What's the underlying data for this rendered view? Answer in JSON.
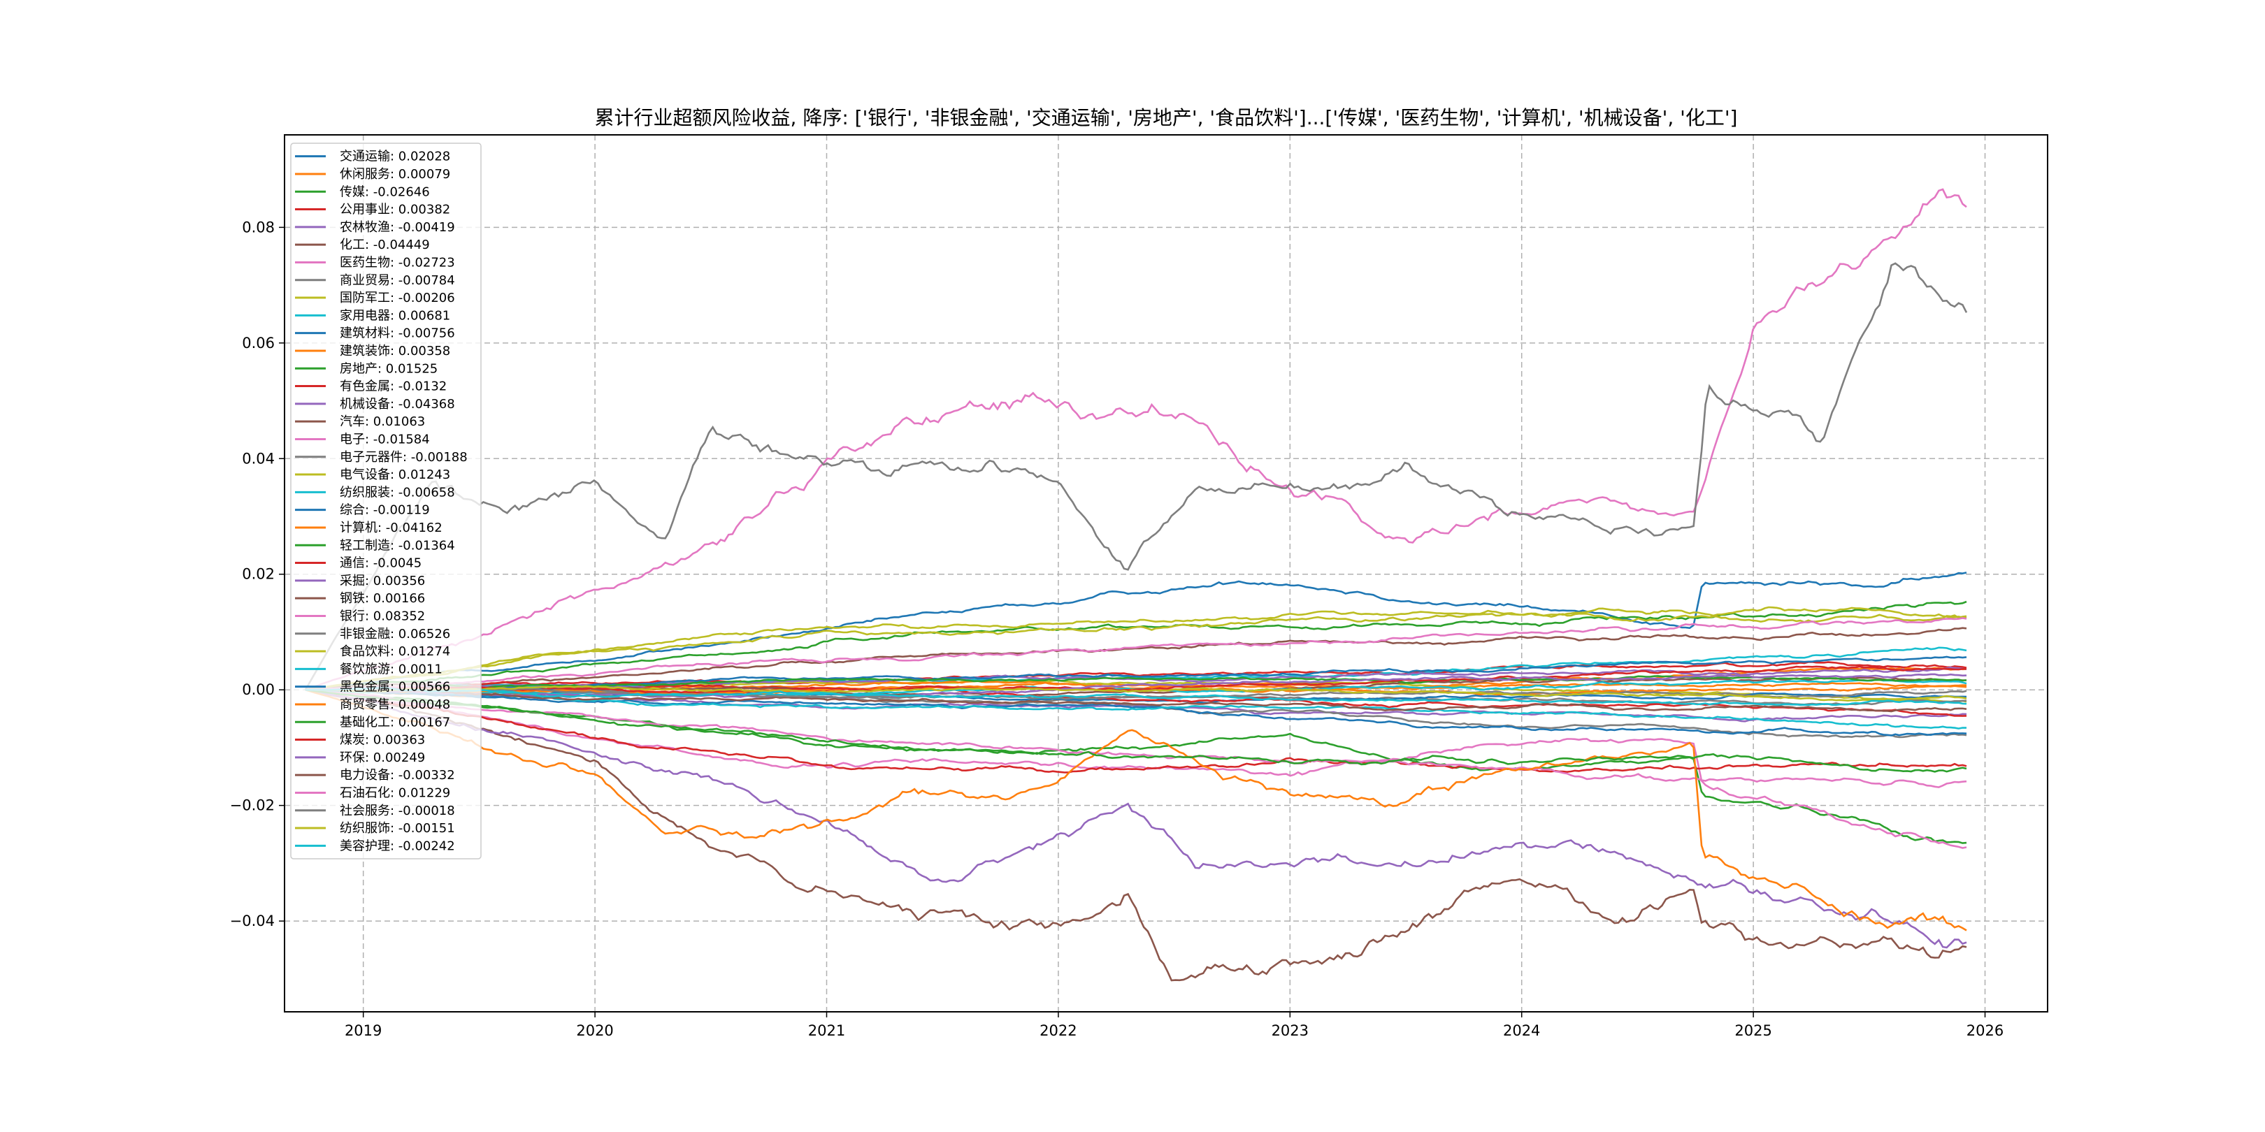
{
  "chart_data": {
    "type": "line",
    "title": "累计行业超额风险收益,  降序: ['银行', '非银金融', '交通运输', '房地产', '食品饮料']...['传媒', '医药生物', '计算机', '机械设备', '化工']",
    "xlabel": "",
    "ylabel": "",
    "xlim": [
      2018.66,
      2026.27
    ],
    "ylim": [
      -0.0557,
      0.096
    ],
    "x_ticks": [
      "2019",
      "2020",
      "2021",
      "2022",
      "2023",
      "2024",
      "2025",
      "2026"
    ],
    "y_ticks": [
      "−0.04",
      "−0.02",
      "0.00",
      "0.02",
      "0.04",
      "0.06",
      "0.08"
    ],
    "grid": true,
    "legend_position": "upper-left",
    "series": [
      {
        "name": "交通运输",
        "final": 0.02028,
        "label": "交通运输: 0.02028",
        "color": "#1f77b4",
        "anchors": [
          [
            2020,
            0.005
          ],
          [
            2021,
            0.01
          ],
          [
            2022,
            0.013
          ],
          [
            2023,
            0.017
          ],
          [
            2024,
            0.015
          ],
          [
            2024.74,
            0.012
          ],
          [
            2024.78,
            0.02
          ],
          [
            2025.5,
            0.019
          ]
        ]
      },
      {
        "name": "休闲服务",
        "final": 0.00079,
        "label": "休闲服务: 0.00079",
        "color": "#ff7f0e"
      },
      {
        "name": "传媒",
        "final": -0.02646,
        "label": "传媒: -0.02646",
        "color": "#2ca02c",
        "anchors": [
          [
            2020,
            -0.005
          ],
          [
            2021,
            -0.01
          ],
          [
            2022,
            -0.012
          ],
          [
            2023,
            -0.008
          ],
          [
            2023.5,
            -0.013
          ],
          [
            2024,
            -0.015
          ],
          [
            2024.74,
            -0.013
          ],
          [
            2024.78,
            -0.02
          ],
          [
            2025.3,
            -0.022
          ]
        ]
      },
      {
        "name": "公用事业",
        "final": 0.00382,
        "label": "公用事业: 0.00382",
        "color": "#d62728"
      },
      {
        "name": "农林牧渔",
        "final": -0.00419,
        "label": "农林牧渔: -0.00419",
        "color": "#9467bd"
      },
      {
        "name": "化工",
        "final": -0.04449,
        "label": "化工: -0.04449",
        "color": "#8c564b",
        "anchors": [
          [
            2020,
            -0.01
          ],
          [
            2020.5,
            -0.025
          ],
          [
            2021,
            -0.035
          ],
          [
            2021.5,
            -0.042
          ],
          [
            2022,
            -0.045
          ],
          [
            2022.3,
            -0.035
          ],
          [
            2022.5,
            -0.046
          ],
          [
            2023,
            -0.045
          ],
          [
            2023.5,
            -0.04
          ],
          [
            2024,
            -0.035
          ],
          [
            2024.5,
            -0.04
          ],
          [
            2024.74,
            -0.034
          ],
          [
            2024.78,
            -0.04
          ],
          [
            2025.5,
            -0.042
          ]
        ]
      },
      {
        "name": "医药生物",
        "final": -0.02723,
        "label": "医药生物: -0.02723",
        "color": "#e377c2",
        "anchors": [
          [
            2020,
            -0.01
          ],
          [
            2021,
            -0.015
          ],
          [
            2022,
            -0.015
          ],
          [
            2023,
            -0.018
          ],
          [
            2024,
            -0.012
          ],
          [
            2024.74,
            -0.012
          ],
          [
            2024.78,
            -0.02
          ],
          [
            2025.5,
            -0.025
          ]
        ]
      },
      {
        "name": "商业贸易",
        "final": -0.00784,
        "label": "商业贸易: -0.00784",
        "color": "#7f7f7f"
      },
      {
        "name": "国防军工",
        "final": -0.00206,
        "label": "国防军工: -0.00206",
        "color": "#bcbd22"
      },
      {
        "name": "家用电器",
        "final": 0.00681,
        "label": "家用电器: 0.00681",
        "color": "#17becf"
      },
      {
        "name": "建筑材料",
        "final": -0.00756,
        "label": "建筑材料: -0.00756",
        "color": "#1f77b4"
      },
      {
        "name": "建筑装饰",
        "final": 0.00358,
        "label": "建筑装饰: 0.00358",
        "color": "#ff7f0e"
      },
      {
        "name": "房地产",
        "final": 0.01525,
        "label": "房地产: 0.01525",
        "color": "#2ca02c",
        "anchors": [
          [
            2020,
            0.004
          ],
          [
            2021,
            0.008
          ],
          [
            2022,
            0.01
          ],
          [
            2023,
            0.011
          ],
          [
            2024,
            0.012
          ],
          [
            2025,
            0.013
          ]
        ]
      },
      {
        "name": "有色金属",
        "final": -0.0132,
        "label": "有色金属: -0.0132",
        "color": "#d62728",
        "anchors": [
          [
            2020,
            -0.008
          ],
          [
            2021,
            -0.012
          ],
          [
            2022,
            -0.013
          ],
          [
            2023,
            -0.012
          ],
          [
            2024,
            -0.013
          ],
          [
            2025,
            -0.014
          ]
        ]
      },
      {
        "name": "机械设备",
        "final": -0.04368,
        "label": "机械设备: -0.04368",
        "color": "#9467bd",
        "anchors": [
          [
            2020,
            -0.01
          ],
          [
            2021,
            -0.02
          ],
          [
            2021.5,
            -0.03
          ],
          [
            2022,
            -0.025
          ],
          [
            2022.3,
            -0.02
          ],
          [
            2022.6,
            -0.03
          ],
          [
            2023,
            -0.03
          ],
          [
            2024,
            -0.028
          ],
          [
            2024.74,
            -0.033
          ],
          [
            2025,
            -0.035
          ],
          [
            2025.5,
            -0.04
          ]
        ]
      },
      {
        "name": "汽车",
        "final": 0.01063,
        "label": "汽车: 0.01063",
        "color": "#8c564b",
        "anchors": [
          [
            2020,
            0.002
          ],
          [
            2021,
            0.005
          ],
          [
            2022,
            0.007
          ],
          [
            2023,
            0.008
          ],
          [
            2024,
            0.009
          ],
          [
            2025,
            0.01
          ]
        ]
      },
      {
        "name": "电子",
        "final": -0.01584,
        "label": "电子: -0.01584",
        "color": "#e377c2",
        "anchors": [
          [
            2020,
            -0.004
          ],
          [
            2021,
            -0.008
          ],
          [
            2022,
            -0.01
          ],
          [
            2023,
            -0.012
          ],
          [
            2024,
            -0.013
          ],
          [
            2025,
            -0.015
          ]
        ]
      },
      {
        "name": "电子元器件",
        "final": -0.00188,
        "label": "电子元器件: -0.00188",
        "color": "#7f7f7f"
      },
      {
        "name": "电气设备",
        "final": 0.01243,
        "label": "电气设备: 0.01243",
        "color": "#bcbd22",
        "anchors": [
          [
            2020,
            0.007
          ],
          [
            2021,
            0.011
          ],
          [
            2022,
            0.011
          ],
          [
            2023,
            0.012
          ],
          [
            2024,
            0.012
          ],
          [
            2025,
            0.012
          ]
        ]
      },
      {
        "name": "纺织服装",
        "final": -0.00658,
        "label": "纺织服装: -0.00658",
        "color": "#17becf"
      },
      {
        "name": "综合",
        "final": -0.00119,
        "label": "综合: -0.00119",
        "color": "#1f77b4"
      },
      {
        "name": "计算机",
        "final": -0.04162,
        "label": "计算机: -0.04162",
        "color": "#ff7f0e",
        "anchors": [
          [
            2020,
            -0.015
          ],
          [
            2020.3,
            -0.025
          ],
          [
            2020.8,
            -0.025
          ],
          [
            2021.3,
            -0.02
          ],
          [
            2022,
            -0.02
          ],
          [
            2022.3,
            -0.01
          ],
          [
            2022.6,
            -0.015
          ],
          [
            2023,
            -0.02
          ],
          [
            2023.5,
            -0.02
          ],
          [
            2024,
            -0.015
          ],
          [
            2024.74,
            -0.01
          ],
          [
            2024.78,
            -0.03
          ],
          [
            2025.3,
            -0.035
          ]
        ]
      },
      {
        "name": "轻工制造",
        "final": -0.01364,
        "label": "轻工制造: -0.01364",
        "color": "#2ca02c",
        "anchors": [
          [
            2020,
            -0.006
          ],
          [
            2021,
            -0.01
          ],
          [
            2022,
            -0.012
          ],
          [
            2023,
            -0.012
          ],
          [
            2024,
            -0.013
          ],
          [
            2025,
            -0.013
          ]
        ]
      },
      {
        "name": "通信",
        "final": -0.0045,
        "label": "通信: -0.0045",
        "color": "#d62728"
      },
      {
        "name": "采掘",
        "final": 0.00356,
        "label": "采掘: 0.00356",
        "color": "#9467bd"
      },
      {
        "name": "钢铁",
        "final": 0.00166,
        "label": "钢铁: 0.00166",
        "color": "#8c564b"
      },
      {
        "name": "银行",
        "final": 0.08352,
        "label": "银行: 0.08352",
        "color": "#e377c2",
        "anchors": [
          [
            2019.5,
            0.01
          ],
          [
            2020,
            0.02
          ],
          [
            2020.5,
            0.03
          ],
          [
            2021,
            0.045
          ],
          [
            2021.5,
            0.055
          ],
          [
            2022,
            0.052
          ],
          [
            2022.5,
            0.048
          ],
          [
            2023,
            0.04
          ],
          [
            2023.5,
            0.03
          ],
          [
            2024,
            0.033
          ],
          [
            2024.5,
            0.032
          ],
          [
            2024.74,
            0.03
          ],
          [
            2025,
            0.06
          ],
          [
            2025.5,
            0.07
          ],
          [
            2025.8,
            0.086
          ]
        ]
      },
      {
        "name": "非银金融",
        "final": 0.06526,
        "label": "非银金融: 0.06526",
        "color": "#7f7f7f",
        "anchors": [
          [
            2019.3,
            0.038
          ],
          [
            2019.6,
            0.035
          ],
          [
            2020,
            0.04
          ],
          [
            2020.3,
            0.03
          ],
          [
            2020.5,
            0.05
          ],
          [
            2021,
            0.04
          ],
          [
            2021.5,
            0.038
          ],
          [
            2022,
            0.035
          ],
          [
            2022.3,
            0.02
          ],
          [
            2022.6,
            0.035
          ],
          [
            2023,
            0.035
          ],
          [
            2023.5,
            0.04
          ],
          [
            2024,
            0.03
          ],
          [
            2024.5,
            0.028
          ],
          [
            2024.74,
            0.03
          ],
          [
            2024.8,
            0.055
          ],
          [
            2025.3,
            0.045
          ],
          [
            2025.6,
            0.07
          ]
        ]
      },
      {
        "name": "食品饮料",
        "final": 0.01274,
        "label": "食品饮料: 0.01274",
        "color": "#bcbd22",
        "anchors": [
          [
            2020,
            0.008
          ],
          [
            2021,
            0.011
          ],
          [
            2022,
            0.012
          ],
          [
            2023,
            0.013
          ],
          [
            2024,
            0.013
          ],
          [
            2025,
            0.012
          ]
        ]
      },
      {
        "name": "餐饮旅游",
        "final": 0.0011,
        "label": "餐饮旅游: 0.0011",
        "color": "#17becf"
      },
      {
        "name": "黑色金属",
        "final": 0.00566,
        "label": "黑色金属: 0.00566",
        "color": "#1f77b4"
      },
      {
        "name": "商贸零售",
        "final": 0.00048,
        "label": "商贸零售: 0.00048",
        "color": "#ff7f0e"
      },
      {
        "name": "基础化工",
        "final": 0.00167,
        "label": "基础化工: 0.00167",
        "color": "#2ca02c"
      },
      {
        "name": "煤炭",
        "final": 0.00363,
        "label": "煤炭: 0.00363",
        "color": "#d62728"
      },
      {
        "name": "环保",
        "final": 0.00249,
        "label": "环保: 0.00249",
        "color": "#9467bd"
      },
      {
        "name": "电力设备",
        "final": -0.00332,
        "label": "电力设备: -0.00332",
        "color": "#8c564b"
      },
      {
        "name": "石油石化",
        "final": 0.01229,
        "label": "石油石化: 0.01229",
        "color": "#e377c2",
        "anchors": [
          [
            2020,
            0.003
          ],
          [
            2021,
            0.006
          ],
          [
            2022,
            0.008
          ],
          [
            2023,
            0.009
          ],
          [
            2024,
            0.01
          ],
          [
            2025,
            0.011
          ]
        ]
      },
      {
        "name": "社会服务",
        "final": -0.00018,
        "label": "社会服务: -0.00018",
        "color": "#7f7f7f"
      },
      {
        "name": "纺织服饰",
        "final": -0.00151,
        "label": "纺织服饰: -0.00151",
        "color": "#bcbd22"
      },
      {
        "name": "美容护理",
        "final": -0.00242,
        "label": "美容护理: -0.00242",
        "color": "#17becf"
      }
    ]
  }
}
